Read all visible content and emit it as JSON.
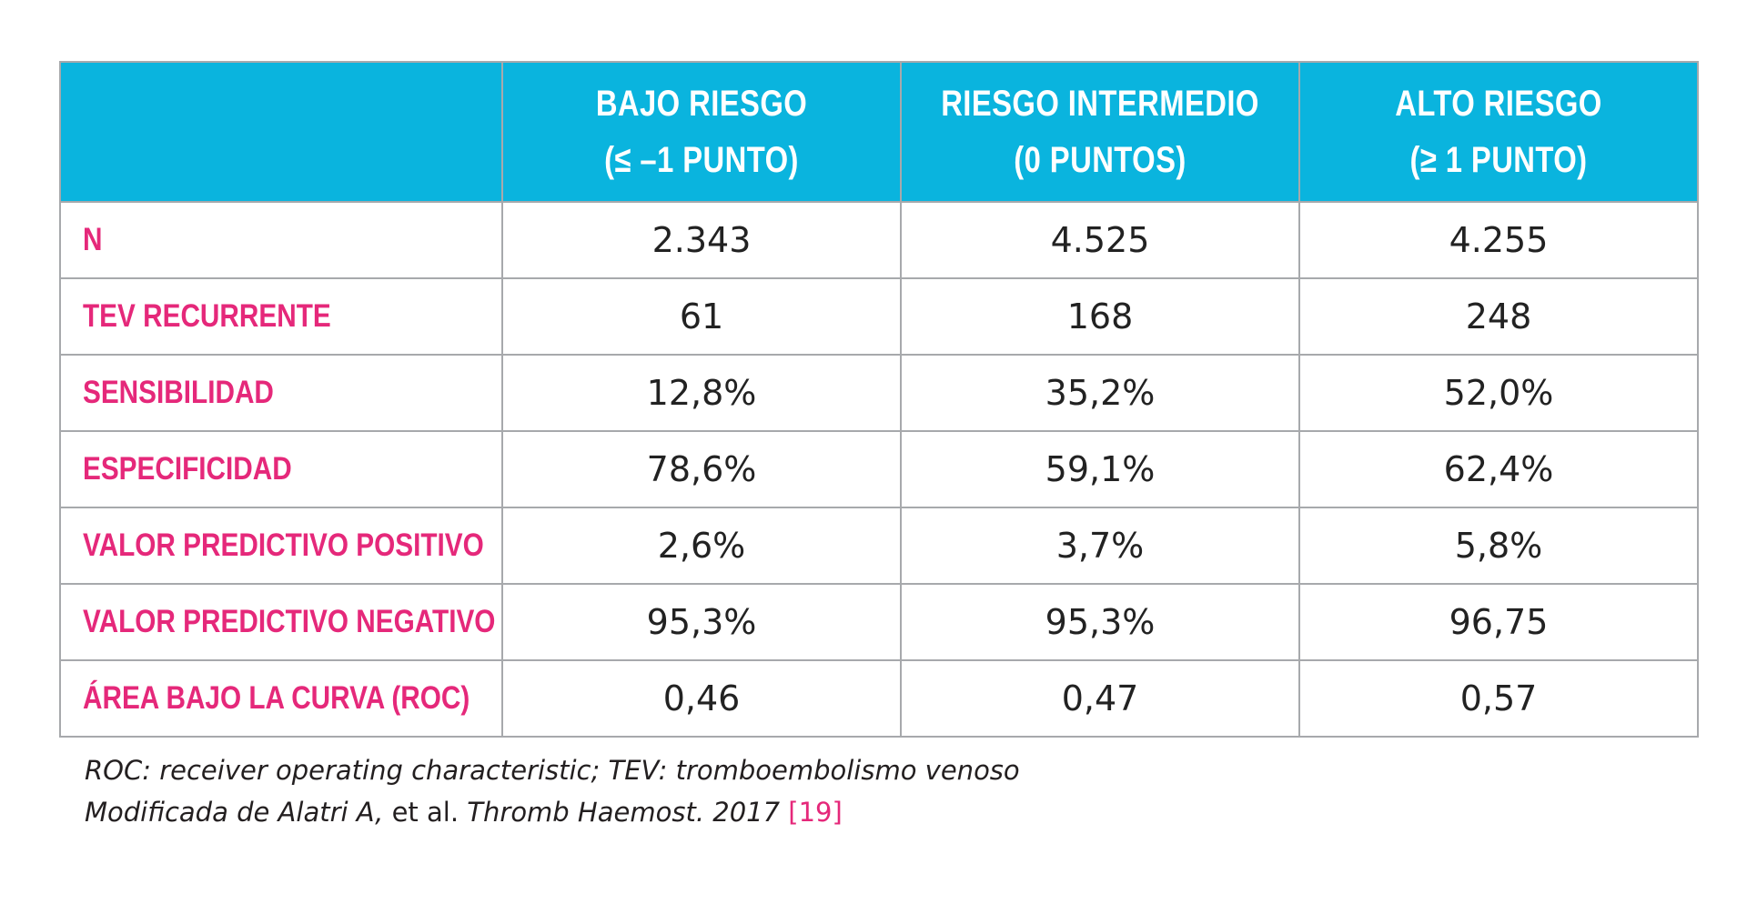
{
  "table": {
    "headers": [
      {
        "line1": "",
        "line2": ""
      },
      {
        "line1": "BAJO RIESGO",
        "line2": "(≤ –1 PUNTO)"
      },
      {
        "line1": "RIESGO INTERMEDIO",
        "line2": "(0 PUNTOS)"
      },
      {
        "line1": "ALTO RIESGO",
        "line2": "(≥ 1 PUNTO)"
      }
    ],
    "rows": [
      {
        "label": "N",
        "values": [
          "2.343",
          "4.525",
          "4.255"
        ]
      },
      {
        "label": "TEV RECURRENTE",
        "values": [
          "61",
          "168",
          "248"
        ]
      },
      {
        "label": "SENSIBILIDAD",
        "values": [
          "12,8%",
          "35,2%",
          "52,0%"
        ]
      },
      {
        "label": "ESPECIFICIDAD",
        "values": [
          "78,6%",
          "59,1%",
          "62,4%"
        ]
      },
      {
        "label": "VALOR PREDICTIVO POSITIVO",
        "values": [
          "2,6%",
          "3,7%",
          "5,8%"
        ]
      },
      {
        "label": "VALOR PREDICTIVO NEGATIVO",
        "values": [
          "95,3%",
          "95,3%",
          "96,75"
        ]
      },
      {
        "label": "ÁREA BAJO LA CURVA (ROC)",
        "values": [
          "0,46",
          "0,47",
          "0,57"
        ]
      }
    ]
  },
  "footnotes": {
    "abbreviations": "ROC: receiver operating characteristic; TEV: tromboembolismo venoso",
    "source_prefix": "Modificada de Alatri A,",
    "source_etal": " et al. ",
    "source_journal": "Thromb Haemost. 2017 ",
    "source_ref": "[19]"
  },
  "colors": {
    "header_bg": "#0ab4de",
    "label_text": "#e5287a",
    "border": "#a7a9ac"
  }
}
